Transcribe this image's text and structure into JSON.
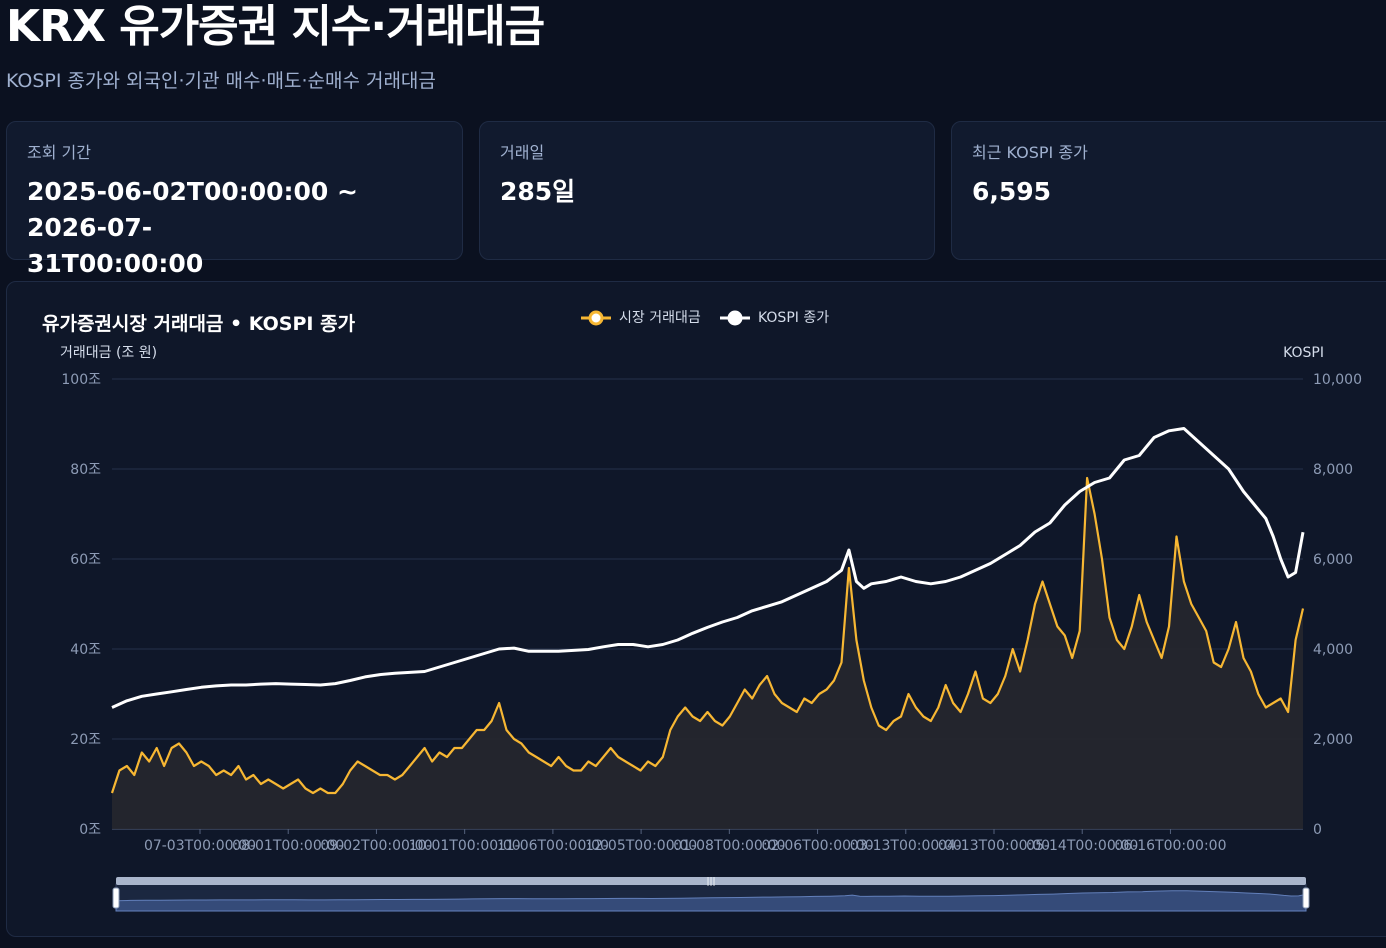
{
  "header": {
    "title": "KRX 유가증권 지수·거래대금",
    "subtitle": "KOSPI 종가와 외국인·기관 매수·매도·순매수 거래대금"
  },
  "stats": [
    {
      "label": "조회 기간",
      "value_line1": "2025-06-02T00:00:00 ~ 2026-07-",
      "value_line2": "31T00:00:00"
    },
    {
      "label": "거래일",
      "value": "285일"
    },
    {
      "label": "최근 KOSPI 종가",
      "value": "6,595"
    }
  ],
  "colors": {
    "turnover": "#f7b733",
    "kospi": "#ffffff",
    "background": "#0b1120",
    "panel": "#0f1729",
    "grid": "#24304a"
  },
  "chart_data": {
    "type": "line",
    "title": "유가증권시장 거래대금 • KOSPI 종가",
    "legend": [
      {
        "name": "시장 거래대금",
        "color": "#f7b733"
      },
      {
        "name": "KOSPI 종가",
        "color": "#ffffff"
      }
    ],
    "legend_position": "top-center",
    "y_left": {
      "label": "거래대금 (조 원)",
      "min": 0,
      "max": 100,
      "ticks": [
        "0조",
        "20조",
        "40조",
        "60조",
        "80조",
        "100조"
      ]
    },
    "y_right": {
      "label": "KOSPI",
      "min": 0,
      "max": 10000,
      "ticks": [
        "0",
        "2,000",
        "4,000",
        "6,000",
        "8,000",
        "10,000"
      ]
    },
    "x_tick_labels": [
      "07-03T00:00:00",
      "08-01T00:00:00",
      "09-02T00:00:00",
      "10-01T00:00:00",
      "11-06T00:00:00",
      "12-05T00:00:00",
      "01-08T00:00:00",
      "02-06T00:00:00",
      "03-13T00:00:00",
      "04-13T00:00:00",
      "05-14T00:00:00",
      "06-16T00:00:00"
    ],
    "grid": true,
    "series": [
      {
        "name": "시장 거래대금",
        "axis": "left",
        "points": [
          [
            0,
            8
          ],
          [
            5,
            13
          ],
          [
            10,
            14
          ],
          [
            15,
            12
          ],
          [
            20,
            17
          ],
          [
            25,
            15
          ],
          [
            30,
            18
          ],
          [
            35,
            14
          ],
          [
            40,
            18
          ],
          [
            45,
            19
          ],
          [
            50,
            17
          ],
          [
            55,
            14
          ],
          [
            60,
            15
          ],
          [
            65,
            14
          ],
          [
            70,
            12
          ],
          [
            75,
            13
          ],
          [
            80,
            12
          ],
          [
            85,
            14
          ],
          [
            90,
            11
          ],
          [
            95,
            12
          ],
          [
            100,
            10
          ],
          [
            105,
            11
          ],
          [
            110,
            10
          ],
          [
            115,
            9
          ],
          [
            120,
            10
          ],
          [
            125,
            11
          ],
          [
            130,
            9
          ],
          [
            135,
            8
          ],
          [
            140,
            9
          ],
          [
            145,
            8
          ],
          [
            150,
            8
          ],
          [
            155,
            10
          ],
          [
            160,
            13
          ],
          [
            165,
            15
          ],
          [
            170,
            14
          ],
          [
            175,
            13
          ],
          [
            180,
            12
          ],
          [
            185,
            12
          ],
          [
            190,
            11
          ],
          [
            195,
            12
          ],
          [
            200,
            14
          ],
          [
            205,
            16
          ],
          [
            210,
            18
          ],
          [
            215,
            15
          ],
          [
            220,
            17
          ],
          [
            225,
            16
          ],
          [
            230,
            18
          ],
          [
            235,
            18
          ],
          [
            240,
            20
          ],
          [
            245,
            22
          ],
          [
            250,
            22
          ],
          [
            255,
            24
          ],
          [
            260,
            28
          ],
          [
            265,
            22
          ],
          [
            270,
            20
          ],
          [
            275,
            19
          ],
          [
            280,
            17
          ],
          [
            285,
            16
          ],
          [
            290,
            15
          ],
          [
            295,
            14
          ],
          [
            300,
            16
          ],
          [
            305,
            14
          ],
          [
            310,
            13
          ],
          [
            315,
            13
          ],
          [
            320,
            15
          ],
          [
            325,
            14
          ],
          [
            330,
            16
          ],
          [
            335,
            18
          ],
          [
            340,
            16
          ],
          [
            345,
            15
          ],
          [
            350,
            14
          ],
          [
            355,
            13
          ],
          [
            360,
            15
          ],
          [
            365,
            14
          ],
          [
            370,
            16
          ],
          [
            375,
            22
          ],
          [
            380,
            25
          ],
          [
            385,
            27
          ],
          [
            390,
            25
          ],
          [
            395,
            24
          ],
          [
            400,
            26
          ],
          [
            405,
            24
          ],
          [
            410,
            23
          ],
          [
            415,
            25
          ],
          [
            420,
            28
          ],
          [
            425,
            31
          ],
          [
            430,
            29
          ],
          [
            435,
            32
          ],
          [
            440,
            34
          ],
          [
            445,
            30
          ],
          [
            450,
            28
          ],
          [
            455,
            27
          ],
          [
            460,
            26
          ],
          [
            465,
            29
          ],
          [
            470,
            28
          ],
          [
            475,
            30
          ],
          [
            480,
            31
          ],
          [
            485,
            33
          ],
          [
            490,
            37
          ],
          [
            495,
            58
          ],
          [
            500,
            42
          ],
          [
            505,
            33
          ],
          [
            510,
            27
          ],
          [
            515,
            23
          ],
          [
            520,
            22
          ],
          [
            525,
            24
          ],
          [
            530,
            25
          ],
          [
            535,
            30
          ],
          [
            540,
            27
          ],
          [
            545,
            25
          ],
          [
            550,
            24
          ],
          [
            555,
            27
          ],
          [
            560,
            32
          ],
          [
            565,
            28
          ],
          [
            570,
            26
          ],
          [
            575,
            30
          ],
          [
            580,
            35
          ],
          [
            585,
            29
          ],
          [
            590,
            28
          ],
          [
            595,
            30
          ],
          [
            600,
            34
          ],
          [
            605,
            40
          ],
          [
            610,
            35
          ],
          [
            615,
            42
          ],
          [
            620,
            50
          ],
          [
            625,
            55
          ],
          [
            630,
            50
          ],
          [
            635,
            45
          ],
          [
            640,
            43
          ],
          [
            645,
            38
          ],
          [
            650,
            44
          ],
          [
            655,
            78
          ],
          [
            660,
            70
          ],
          [
            665,
            60
          ],
          [
            670,
            47
          ],
          [
            675,
            42
          ],
          [
            680,
            40
          ],
          [
            685,
            45
          ],
          [
            690,
            52
          ],
          [
            695,
            46
          ],
          [
            700,
            42
          ],
          [
            705,
            38
          ],
          [
            710,
            45
          ],
          [
            715,
            65
          ],
          [
            720,
            55
          ],
          [
            725,
            50
          ],
          [
            730,
            47
          ],
          [
            735,
            44
          ],
          [
            740,
            37
          ],
          [
            745,
            36
          ],
          [
            750,
            40
          ],
          [
            755,
            46
          ],
          [
            760,
            38
          ],
          [
            765,
            35
          ],
          [
            770,
            30
          ],
          [
            775,
            27
          ],
          [
            780,
            28
          ],
          [
            785,
            29
          ],
          [
            790,
            26
          ],
          [
            795,
            42
          ],
          [
            800,
            49
          ]
        ]
      },
      {
        "name": "KOSPI 종가",
        "axis": "right",
        "points": [
          [
            0,
            2700
          ],
          [
            10,
            2850
          ],
          [
            20,
            2950
          ],
          [
            30,
            3000
          ],
          [
            40,
            3050
          ],
          [
            50,
            3100
          ],
          [
            60,
            3150
          ],
          [
            70,
            3180
          ],
          [
            80,
            3200
          ],
          [
            90,
            3200
          ],
          [
            100,
            3220
          ],
          [
            110,
            3230
          ],
          [
            120,
            3220
          ],
          [
            130,
            3210
          ],
          [
            140,
            3200
          ],
          [
            150,
            3230
          ],
          [
            160,
            3300
          ],
          [
            170,
            3380
          ],
          [
            180,
            3430
          ],
          [
            190,
            3460
          ],
          [
            200,
            3480
          ],
          [
            210,
            3500
          ],
          [
            220,
            3600
          ],
          [
            230,
            3700
          ],
          [
            240,
            3800
          ],
          [
            250,
            3900
          ],
          [
            260,
            4000
          ],
          [
            270,
            4020
          ],
          [
            280,
            3950
          ],
          [
            290,
            3950
          ],
          [
            300,
            3950
          ],
          [
            310,
            3970
          ],
          [
            320,
            3990
          ],
          [
            330,
            4050
          ],
          [
            340,
            4100
          ],
          [
            350,
            4100
          ],
          [
            360,
            4050
          ],
          [
            370,
            4100
          ],
          [
            380,
            4200
          ],
          [
            390,
            4350
          ],
          [
            400,
            4480
          ],
          [
            410,
            4600
          ],
          [
            420,
            4700
          ],
          [
            430,
            4850
          ],
          [
            440,
            4950
          ],
          [
            450,
            5050
          ],
          [
            460,
            5200
          ],
          [
            470,
            5350
          ],
          [
            480,
            5500
          ],
          [
            490,
            5750
          ],
          [
            495,
            6200
          ],
          [
            500,
            5500
          ],
          [
            505,
            5350
          ],
          [
            510,
            5450
          ],
          [
            520,
            5500
          ],
          [
            530,
            5600
          ],
          [
            540,
            5500
          ],
          [
            550,
            5450
          ],
          [
            560,
            5500
          ],
          [
            570,
            5600
          ],
          [
            580,
            5750
          ],
          [
            590,
            5900
          ],
          [
            600,
            6100
          ],
          [
            610,
            6300
          ],
          [
            620,
            6600
          ],
          [
            630,
            6800
          ],
          [
            640,
            7200
          ],
          [
            650,
            7500
          ],
          [
            660,
            7700
          ],
          [
            670,
            7800
          ],
          [
            680,
            8200
          ],
          [
            690,
            8300
          ],
          [
            700,
            8700
          ],
          [
            710,
            8850
          ],
          [
            720,
            8900
          ],
          [
            730,
            8600
          ],
          [
            740,
            8300
          ],
          [
            750,
            8000
          ],
          [
            760,
            7500
          ],
          [
            770,
            7100
          ],
          [
            775,
            6900
          ],
          [
            780,
            6500
          ],
          [
            785,
            6000
          ],
          [
            790,
            5600
          ],
          [
            795,
            5700
          ],
          [
            800,
            6595
          ]
        ]
      }
    ]
  }
}
